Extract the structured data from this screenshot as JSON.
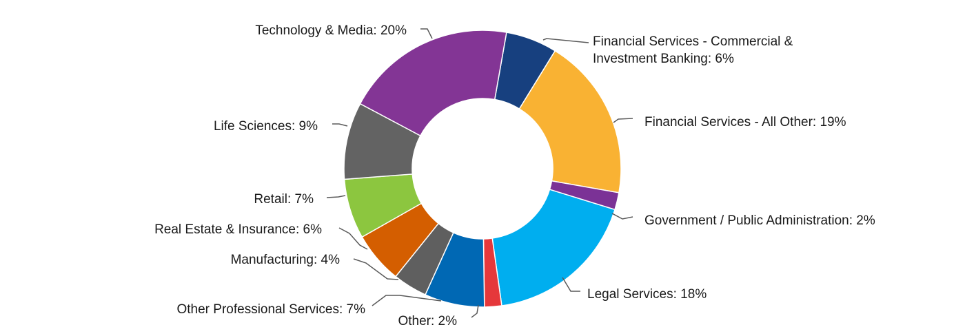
{
  "chart_data": {
    "type": "pie",
    "donut": true,
    "title": "",
    "legend": "none",
    "slices": [
      {
        "label": "Financial Services - Commercial & Investment Banking: 6%",
        "lines": [
          "Financial Services - Commercial &",
          "Investment Banking: 6%"
        ],
        "category": "Financial Services - Commercial & Investment Banking",
        "value": 6,
        "color": "#17407f"
      },
      {
        "label": "Financial Services - All Other: 19%",
        "lines": [
          "Financial Services - All Other: 19%"
        ],
        "category": "Financial Services - All Other",
        "value": 19,
        "color": "#f9b233"
      },
      {
        "label": "Government / Public Administration: 2%",
        "lines": [
          "Government / Public Administration: 2%"
        ],
        "category": "Government / Public Administration",
        "value": 2,
        "color": "#7b3296"
      },
      {
        "label": "Legal Services: 18%",
        "lines": [
          "Legal Services: 18%"
        ],
        "category": "Legal Services",
        "value": 18,
        "color": "#00aeef"
      },
      {
        "label": "Other: 2%",
        "lines": [
          "Other: 2%"
        ],
        "category": "Other",
        "value": 2,
        "color": "#e5383b"
      },
      {
        "label": "Other Professional Services: 7%",
        "lines": [
          "Other Professional Services: 7%"
        ],
        "category": "Other Professional Services",
        "value": 7,
        "color": "#0068b4"
      },
      {
        "label": "Manufacturing: 4%",
        "lines": [
          "Manufacturing: 4%"
        ],
        "category": "Manufacturing",
        "value": 4,
        "color": "#5f5f5f"
      },
      {
        "label": "Real Estate & Insurance: 6%",
        "lines": [
          "Real Estate & Insurance: 6%"
        ],
        "category": "Real Estate & Insurance",
        "value": 6,
        "color": "#d45e00"
      },
      {
        "label": "Retail: 7%",
        "lines": [
          "Retail: 7%"
        ],
        "category": "Retail",
        "value": 7,
        "color": "#8cc63f"
      },
      {
        "label": "Life Sciences: 9%",
        "lines": [
          "Life Sciences: 9%"
        ],
        "category": "Life Sciences",
        "value": 9,
        "color": "#636363"
      },
      {
        "label": "Technology & Media: 20%",
        "lines": [
          "Technology & Media: 20%"
        ],
        "category": "Technology & Media",
        "value": 20,
        "color": "#833595"
      }
    ]
  }
}
